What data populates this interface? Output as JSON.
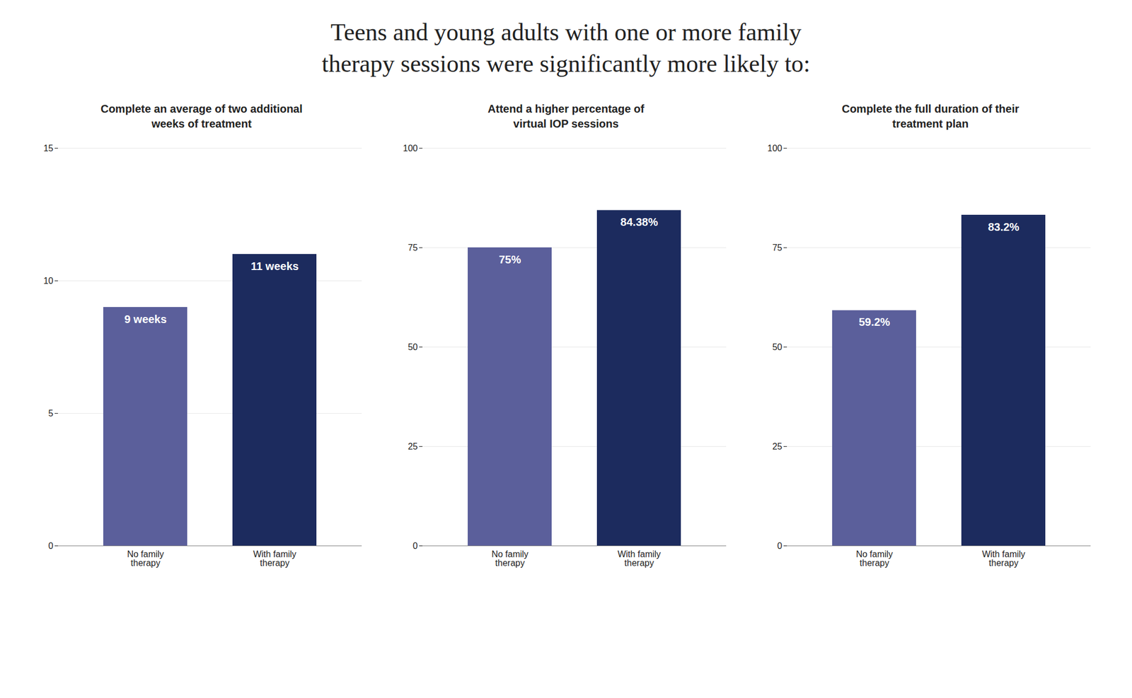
{
  "title": "Teens and young adults with one or more family\ntherapy sessions were significantly more likely to:",
  "chart_data": [
    {
      "type": "bar",
      "subtitle": "Complete an average of two additional\nweeks of treatment",
      "categories": [
        "No family\ntherapy",
        "With family\ntherapy"
      ],
      "values": [
        9,
        11
      ],
      "value_labels": [
        "9 weeks",
        "11 weeks"
      ],
      "data_labels": true,
      "colors": [
        "#5b5f9b",
        "#1c2b5e"
      ],
      "ylim": [
        0,
        15
      ],
      "yticks": [
        0,
        5,
        10,
        15
      ],
      "grid": true
    },
    {
      "type": "bar",
      "subtitle": "Attend a higher percentage of\nvirtual IOP sessions",
      "categories": [
        "No family\ntherapy",
        "With family\ntherapy"
      ],
      "values": [
        75,
        84.38
      ],
      "value_labels": [
        "75%",
        "84.38%"
      ],
      "data_labels": true,
      "colors": [
        "#5b5f9b",
        "#1c2b5e"
      ],
      "ylim": [
        0,
        100
      ],
      "yticks": [
        0,
        25,
        50,
        75,
        100
      ],
      "grid": true
    },
    {
      "type": "bar",
      "subtitle": "Complete the full duration of their\ntreatment plan",
      "categories": [
        "No family\ntherapy",
        "With family\ntherapy"
      ],
      "values": [
        59.2,
        83.2
      ],
      "value_labels": [
        "59.2%",
        "83.2%"
      ],
      "data_labels": true,
      "colors": [
        "#5b5f9b",
        "#1c2b5e"
      ],
      "ylim": [
        0,
        100
      ],
      "yticks": [
        0,
        25,
        50,
        75,
        100
      ],
      "grid": true
    }
  ]
}
